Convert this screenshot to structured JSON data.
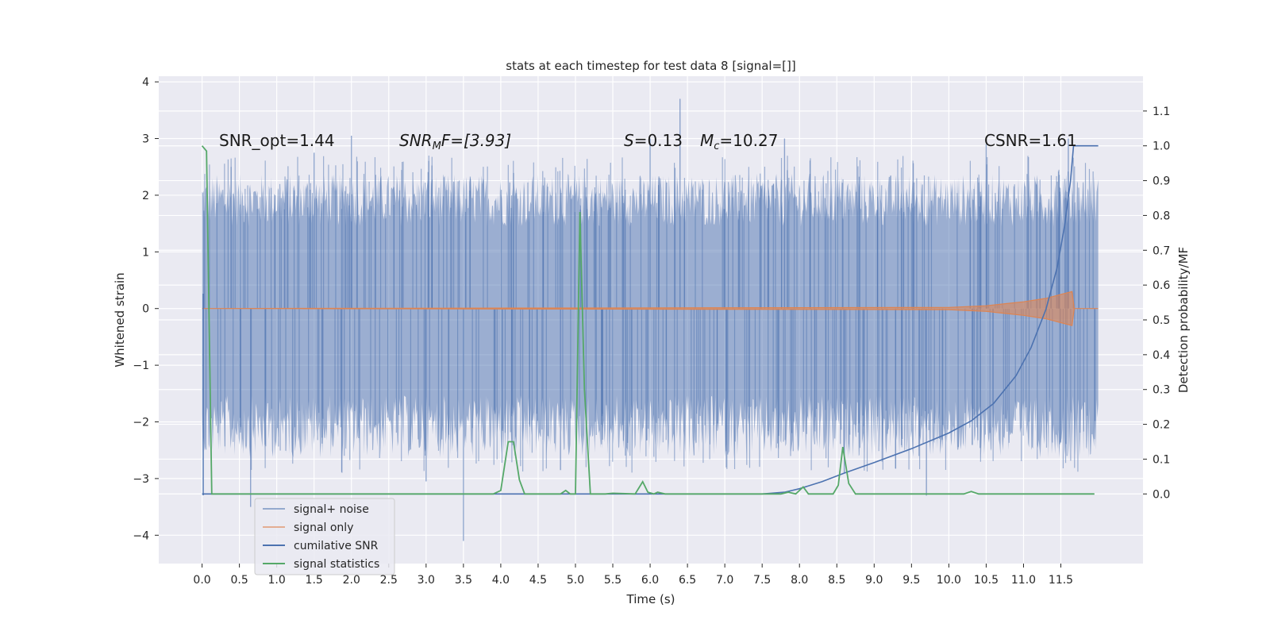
{
  "chart_data": {
    "type": "line",
    "title": "stats at each timestep for test data 8 [signal=[]]",
    "xlabel": "Time (s)",
    "ylabel": "Whitened strain",
    "ylabel_right": "Detection probability/MF",
    "xlim": [
      -0.58,
      12.6
    ],
    "ylim": [
      -4.5,
      4.1
    ],
    "ylim_right": [
      -0.2,
      1.2
    ],
    "x_ticks": [
      "0.0",
      "0.5",
      "1.0",
      "1.5",
      "2.0",
      "2.5",
      "3.0",
      "3.5",
      "4.0",
      "4.5",
      "5.0",
      "5.5",
      "6.0",
      "6.5",
      "7.0",
      "7.5",
      "8.0",
      "8.5",
      "9.0",
      "9.5",
      "10.0",
      "10.5",
      "11.0",
      "11.5"
    ],
    "y_ticks": [
      "4",
      "3",
      "2",
      "1",
      "0",
      "−1",
      "−2",
      "−3",
      "−4"
    ],
    "y_ticks_right": [
      "0.0",
      "0.1",
      "0.2",
      "0.3",
      "0.4",
      "0.5",
      "0.6",
      "0.7",
      "0.8",
      "0.9",
      "1.0",
      "1.1"
    ],
    "grid": true,
    "legend_position": "lower-left",
    "annotations": {
      "snr_opt": "SNR_opt=1.44",
      "snr_mf_base": "SNR",
      "snr_mf_sub": "M",
      "snr_mf_tail": "F=[3.93]",
      "s_label": "S",
      "s_value": "=0.13",
      "mc_label": "M",
      "mc_sub": "c",
      "mc_value": "=10.27",
      "csnr": "CSNR=1.61"
    },
    "series": [
      {
        "name": "signal+ noise",
        "axis": "left",
        "color": "#4c72b0",
        "description_values": {
          "t_start": 0.0,
          "t_end": 12.0,
          "typical_abs_max": 1.7,
          "peak_max": 3.7,
          "peak_min": -4.1
        },
        "spikes": [
          [
            0.65,
            -3.5
          ],
          [
            3.5,
            -4.1
          ],
          [
            6.4,
            3.7
          ],
          [
            2.0,
            3.05
          ],
          [
            7.8,
            3.0
          ],
          [
            3.0,
            -3.05
          ],
          [
            9.7,
            -3.3
          ],
          [
            11.6,
            3.0
          ],
          [
            6.0,
            3.0
          ],
          [
            8.6,
            -2.9
          ],
          [
            4.8,
            -2.85
          ],
          [
            1.5,
            2.75
          ],
          [
            10.5,
            2.9
          ]
        ]
      },
      {
        "name": "signal only",
        "axis": "left",
        "color": "#dd8452",
        "points": [
          [
            0.0,
            0.0
          ],
          [
            10.0,
            0.02
          ],
          [
            10.5,
            0.05
          ],
          [
            11.0,
            0.12
          ],
          [
            11.3,
            0.18
          ],
          [
            11.5,
            0.25
          ],
          [
            11.65,
            0.3
          ],
          [
            11.68,
            0.0
          ],
          [
            12.0,
            0.0
          ]
        ]
      },
      {
        "name": "cumilative SNR",
        "axis": "right",
        "color": "#4c72b0",
        "points": [
          [
            0.0,
            0.0
          ],
          [
            7.5,
            0.0
          ],
          [
            7.8,
            0.005
          ],
          [
            8.0,
            0.015
          ],
          [
            8.3,
            0.035
          ],
          [
            8.6,
            0.06
          ],
          [
            9.0,
            0.09
          ],
          [
            9.5,
            0.13
          ],
          [
            10.0,
            0.175
          ],
          [
            10.3,
            0.21
          ],
          [
            10.6,
            0.26
          ],
          [
            10.9,
            0.34
          ],
          [
            11.1,
            0.42
          ],
          [
            11.3,
            0.53
          ],
          [
            11.45,
            0.65
          ],
          [
            11.55,
            0.77
          ],
          [
            11.63,
            0.9
          ],
          [
            11.67,
            1.0
          ],
          [
            12.0,
            1.0
          ]
        ]
      },
      {
        "name": "signal statistics",
        "axis": "right",
        "color": "#55a868",
        "points": [
          [
            0.0,
            1.0
          ],
          [
            0.06,
            0.985
          ],
          [
            0.13,
            0.0
          ],
          [
            3.9,
            0.0
          ],
          [
            4.0,
            0.01
          ],
          [
            4.1,
            0.15
          ],
          [
            4.17,
            0.15
          ],
          [
            4.25,
            0.04
          ],
          [
            4.32,
            0.0
          ],
          [
            4.8,
            0.0
          ],
          [
            4.87,
            0.01
          ],
          [
            4.93,
            0.0
          ],
          [
            5.0,
            0.0
          ],
          [
            5.06,
            0.81
          ],
          [
            5.12,
            0.3
          ],
          [
            5.2,
            0.0
          ],
          [
            5.4,
            0.0
          ],
          [
            5.5,
            0.002
          ],
          [
            5.8,
            0.0
          ],
          [
            5.9,
            0.035
          ],
          [
            5.97,
            0.005
          ],
          [
            6.05,
            0.0
          ],
          [
            6.1,
            0.005
          ],
          [
            6.2,
            0.0
          ],
          [
            7.75,
            0.0
          ],
          [
            7.85,
            0.005
          ],
          [
            7.95,
            0.0
          ],
          [
            8.05,
            0.02
          ],
          [
            8.12,
            0.0
          ],
          [
            8.45,
            0.0
          ],
          [
            8.52,
            0.025
          ],
          [
            8.58,
            0.135
          ],
          [
            8.66,
            0.03
          ],
          [
            8.75,
            0.0
          ],
          [
            10.2,
            0.0
          ],
          [
            10.3,
            0.007
          ],
          [
            10.4,
            0.0
          ],
          [
            11.95,
            0.0
          ]
        ]
      }
    ]
  }
}
